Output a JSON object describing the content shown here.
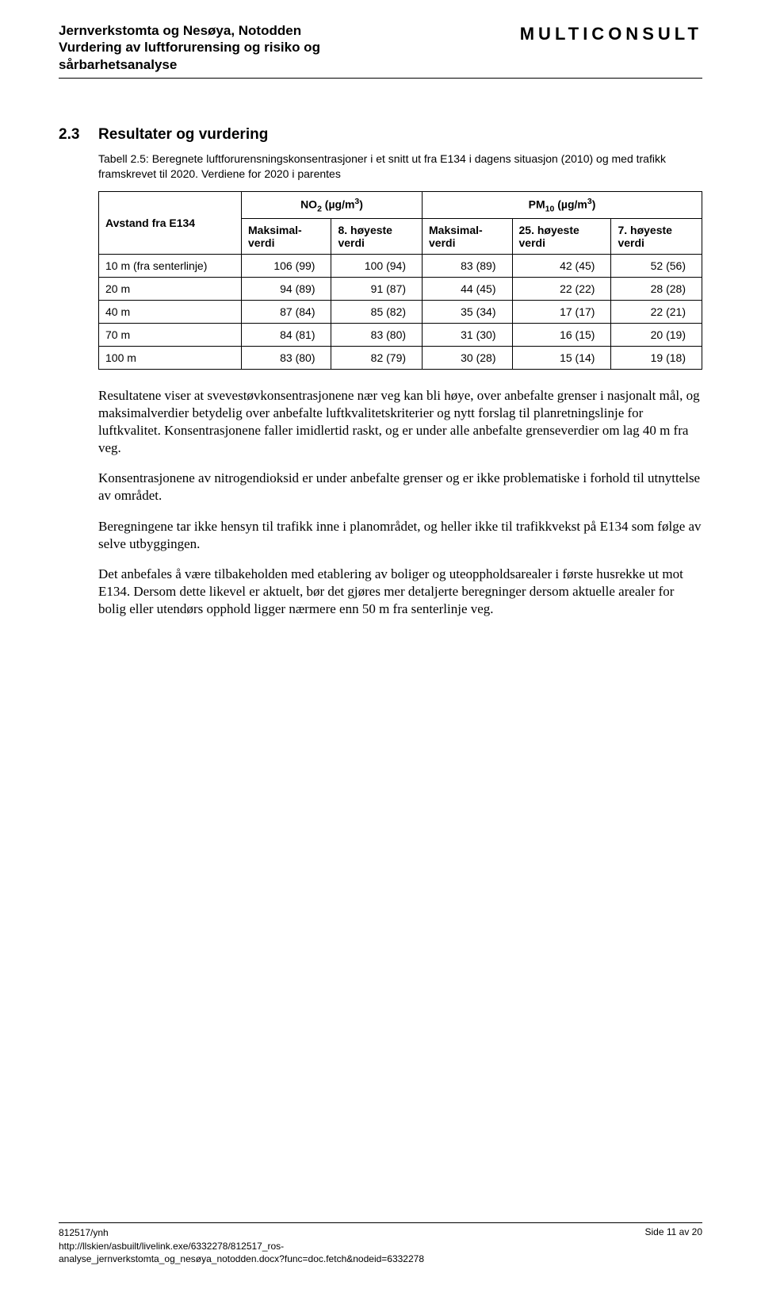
{
  "header": {
    "left_line1": "Jernverkstomta og Nesøya, Notodden",
    "left_line2": "Vurdering av luftforurensing og risiko og",
    "left_line3": "sårbarhetsanalyse",
    "right": "MULTICONSULT"
  },
  "section": {
    "number": "2.3",
    "title": "Resultater og vurdering"
  },
  "table": {
    "caption": "Tabell 2.5: Beregnete luftforurensningskonsentrasjoner i et snitt ut fra E134 i dagens situasjon (2010) og med trafikk framskrevet til 2020. Verdiene for 2020 i parentes",
    "row_header_label": "Avstand fra E134",
    "group1_label_html": "NO<sub>2</sub> (µg/m<sup>3</sup>)",
    "group2_label_html": "PM<sub>10</sub> (µg/m<sup>3</sup>)",
    "col1a_top": "Maksimal-",
    "col1a_bot": "verdi",
    "col1b_top": "8. høyeste",
    "col1b_bot": "verdi",
    "col2a_top": "Maksimal-",
    "col2a_bot": "verdi",
    "col2b_top": "25. høyeste",
    "col2b_bot": "verdi",
    "col2c_top": "7. høyeste",
    "col2c_bot": "verdi",
    "rows": [
      {
        "label": "10 m (fra senterlinje)",
        "c1": "106 (99)",
        "c2": "100 (94)",
        "c3": "83 (89)",
        "c4": "42 (45)",
        "c5": "52 (56)"
      },
      {
        "label": "20 m",
        "c1": "94 (89)",
        "c2": "91 (87)",
        "c3": "44 (45)",
        "c4": "22 (22)",
        "c5": "28 (28)"
      },
      {
        "label": "40 m",
        "c1": "87 (84)",
        "c2": "85 (82)",
        "c3": "35 (34)",
        "c4": "17 (17)",
        "c5": "22 (21)"
      },
      {
        "label": "70 m",
        "c1": "84 (81)",
        "c2": "83 (80)",
        "c3": "31 (30)",
        "c4": "16 (15)",
        "c5": "20 (19)"
      },
      {
        "label": "100 m",
        "c1": "83 (80)",
        "c2": "82 (79)",
        "c3": "30 (28)",
        "c4": "15 (14)",
        "c5": "19 (18)"
      }
    ]
  },
  "paragraphs": {
    "p1": "Resultatene viser at svevestøvkonsentrasjonene nær veg kan bli høye, over anbefalte grenser i nasjonalt mål, og maksimalverdier betydelig over anbefalte luftkvalitetskriterier og nytt forslag til planretningslinje for luftkvalitet. Konsentrasjonene faller imidlertid raskt, og er under alle anbefalte grenseverdier om lag 40 m fra veg.",
    "p2": "Konsentrasjonene av nitrogendioksid er under anbefalte grenser og er ikke problematiske i forhold til utnyttelse av området.",
    "p3": "Beregningene tar ikke hensyn til trafikk inne i planområdet, og heller ikke til trafikkvekst på E134 som følge av selve utbyggingen.",
    "p4": "Det anbefales å være tilbakeholden med etablering av boliger og uteoppholdsarealer i første husrekke ut mot E134. Dersom dette likevel er aktuelt, bør det gjøres mer detaljerte beregninger dersom aktuelle arealer for bolig eller utendørs opphold ligger nærmere enn 50 m fra senterlinje veg."
  },
  "footer": {
    "left_line1": "812517/ynh",
    "left_line2": "http://llskien/asbuilt/livelink.exe/6332278/812517_ros-",
    "left_line3": "analyse_jernverkstomta_og_nesøya_notodden.docx?func=doc.fetch&nodeid=6332278",
    "right": "Side 11 av 20"
  }
}
